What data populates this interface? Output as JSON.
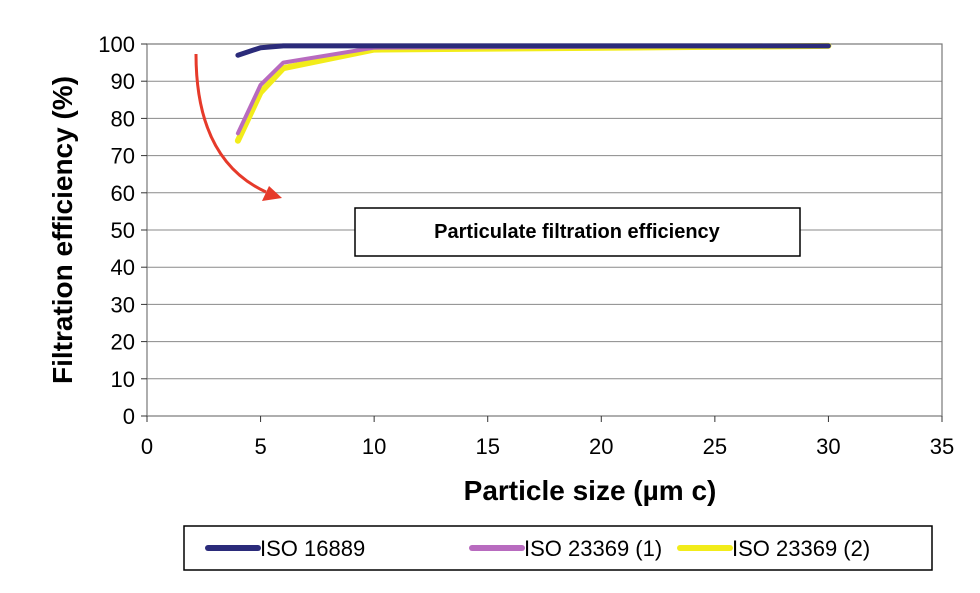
{
  "chart_data": {
    "type": "line",
    "xlabel": "Particle size (µm c)",
    "ylabel": "Filtration efficiency (%)",
    "xlim": [
      0,
      35
    ],
    "ylim": [
      0,
      100
    ],
    "x_ticks": [
      0,
      5,
      10,
      15,
      20,
      25,
      30,
      35
    ],
    "y_ticks": [
      0,
      10,
      20,
      30,
      40,
      50,
      60,
      70,
      80,
      90,
      100
    ],
    "grid": "horizontal",
    "legend_position": "bottom",
    "annotation": "Particulate filtration efficiency",
    "series": [
      {
        "name": "ISO 16889",
        "color": "#2b2b7a",
        "x": [
          4,
          5,
          6,
          10,
          30
        ],
        "y": [
          97,
          99,
          99.5,
          99.5,
          99.5
        ]
      },
      {
        "name": "ISO 23369 (1)",
        "color": "#b86bbf",
        "x": [
          4,
          5,
          6,
          10,
          30
        ],
        "y": [
          76,
          89,
          95,
          99,
          99.5
        ]
      },
      {
        "name": "ISO 23369 (2)",
        "color": "#f2ec1a",
        "x": [
          4,
          5,
          6,
          10,
          30
        ],
        "y": [
          74,
          87,
          93.5,
          98.5,
          99.5
        ]
      }
    ],
    "arrow_color": "#e63a2a"
  }
}
